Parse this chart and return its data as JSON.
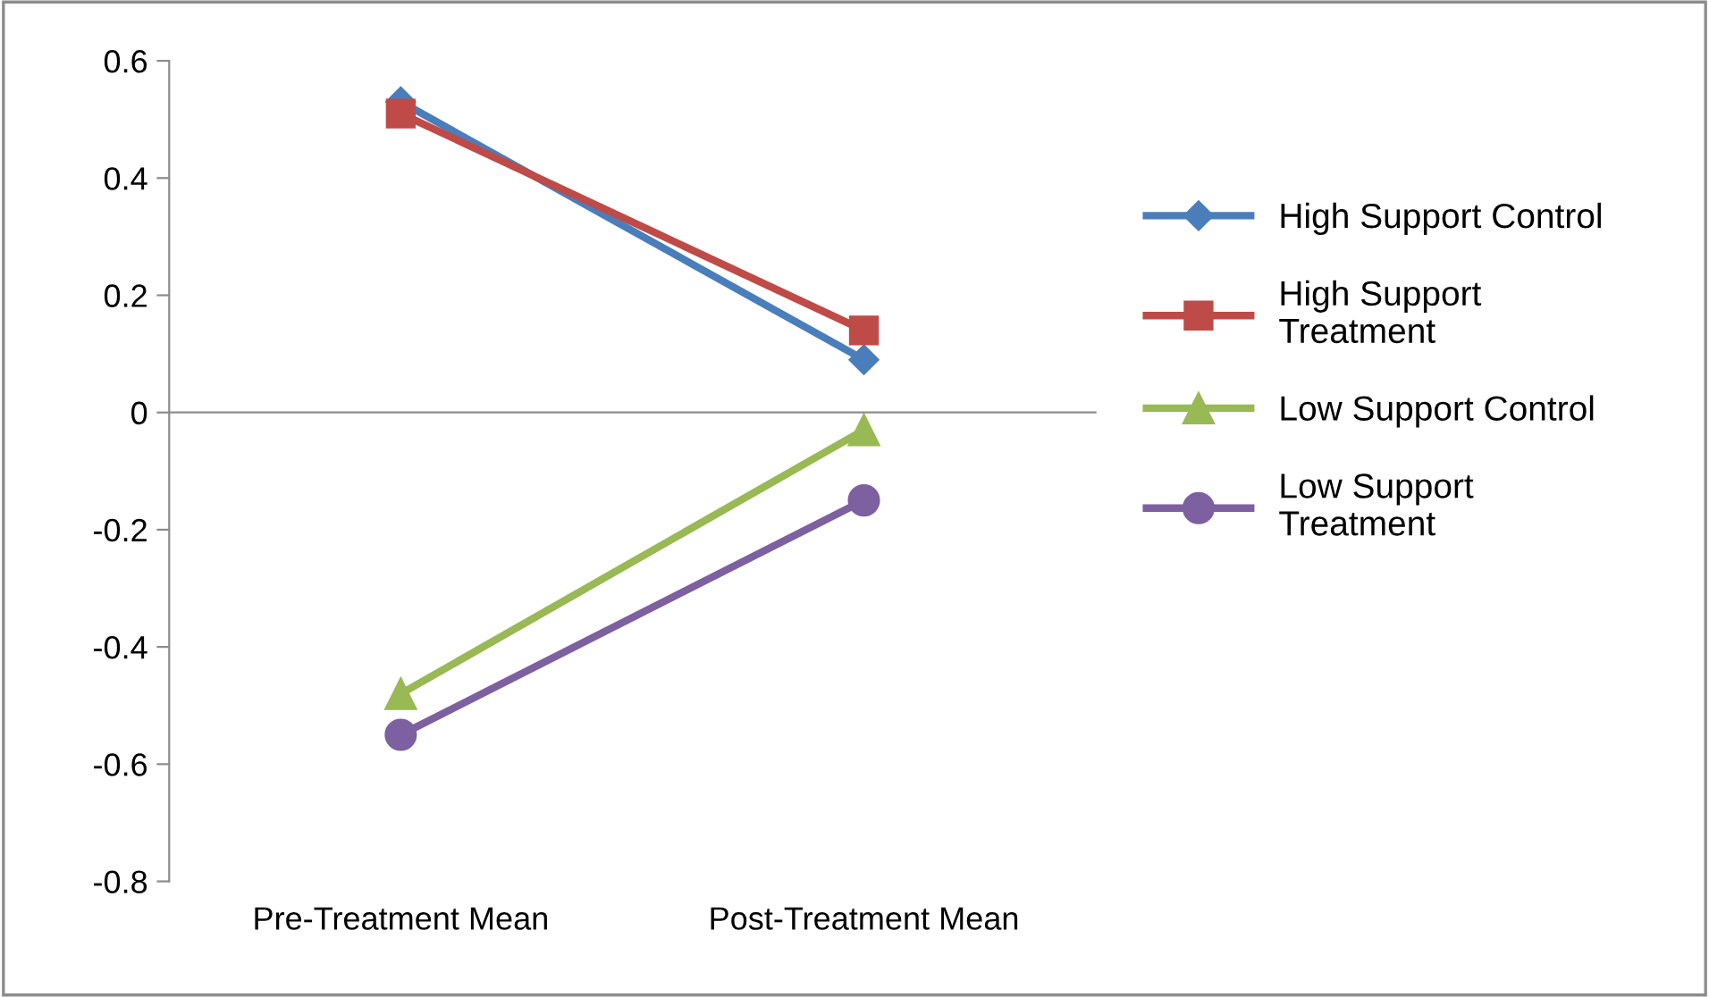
{
  "chart_data": {
    "type": "line",
    "categories": [
      "Pre-Treatment Mean",
      "Post-Treatment Mean"
    ],
    "series": [
      {
        "name": "High Support Control",
        "color": "#4a7ebb",
        "marker": "diamond",
        "values": [
          0.53,
          0.09
        ]
      },
      {
        "name": "High Support Treatment",
        "color": "#be4b48",
        "marker": "square",
        "values": [
          0.51,
          0.14
        ]
      },
      {
        "name": "Low Support Control",
        "color": "#98b954",
        "marker": "triangle",
        "values": [
          -0.48,
          -0.03
        ]
      },
      {
        "name": "Low Support Treatment",
        "color": "#7d60a0",
        "marker": "circle",
        "values": [
          -0.55,
          -0.15
        ]
      }
    ],
    "ylim": [
      -0.8,
      0.6
    ],
    "yticks": [
      {
        "value": -0.8,
        "label": "-0.8"
      },
      {
        "value": -0.6,
        "label": "-0.6"
      },
      {
        "value": -0.4,
        "label": "-0.4"
      },
      {
        "value": -0.2,
        "label": "-0.2"
      },
      0,
      0.2,
      0.4,
      0.6
    ],
    "legend": "right",
    "line_style": "solid"
  }
}
